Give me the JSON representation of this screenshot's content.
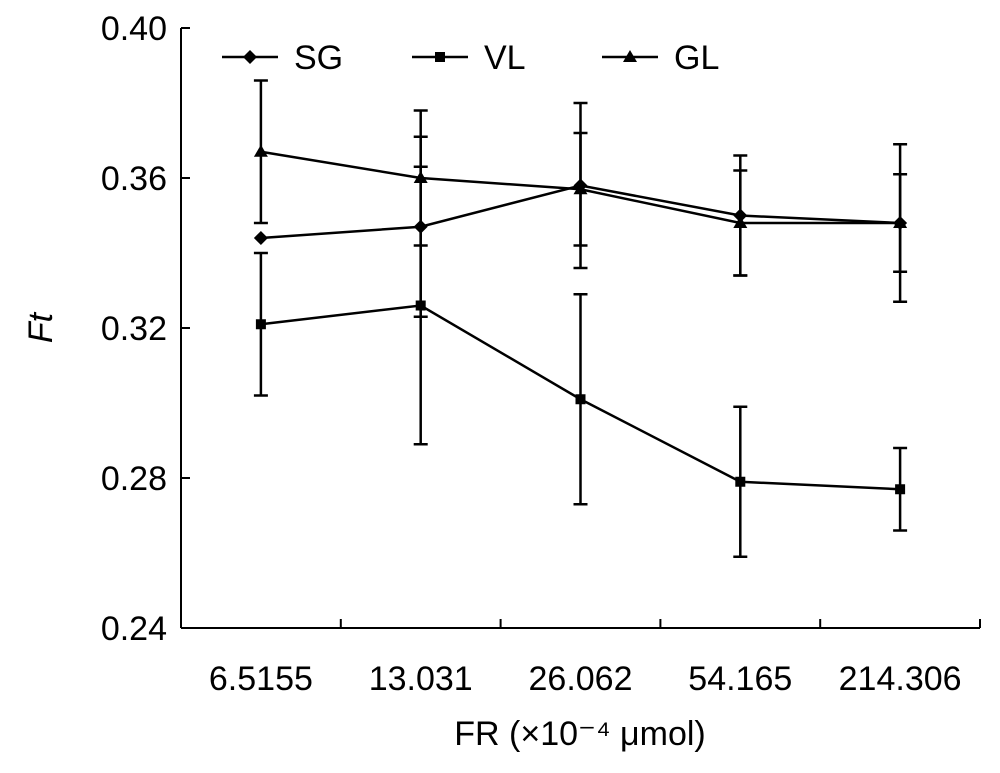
{
  "chart_data": {
    "type": "line",
    "categories": [
      "6.5155",
      "13.031",
      "26.062",
      "54.165",
      "214.306"
    ],
    "xlabel": "FR (×10⁻⁴ μmol)",
    "ylabel": "Ft",
    "ylim": [
      0.24,
      0.4
    ],
    "yticks": [
      "0.40",
      "0.36",
      "0.32",
      "0.28",
      "0.24"
    ],
    "grid": false,
    "legend_position": "top",
    "series": [
      {
        "name": "SG",
        "marker": "diamond",
        "values": [
          0.344,
          0.347,
          0.358,
          0.35,
          0.348
        ],
        "error": [
          0.0,
          0.024,
          0.022,
          0.016,
          0.021
        ]
      },
      {
        "name": "VL",
        "marker": "square",
        "values": [
          0.321,
          0.326,
          0.301,
          0.279,
          0.277
        ],
        "error": [
          0.019,
          0.037,
          0.028,
          0.02,
          0.011
        ]
      },
      {
        "name": "GL",
        "marker": "triangle",
        "values": [
          0.367,
          0.36,
          0.357,
          0.348,
          0.348
        ],
        "error": [
          0.019,
          0.018,
          0.015,
          0.014,
          0.013
        ]
      }
    ]
  }
}
